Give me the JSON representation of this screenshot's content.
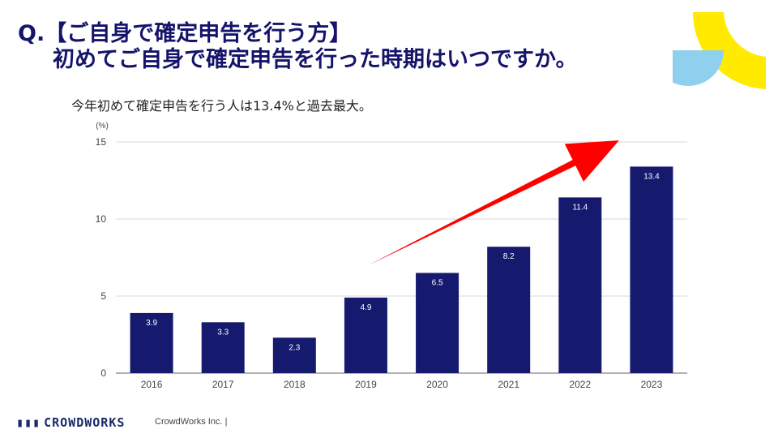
{
  "header": {
    "title_line1": "Q.【ご自身で確定申告を行う方】",
    "title_line2": "初めてご自身で確定申告を行った時期はいつですか。"
  },
  "subtitle": "今年初めて確定申告を行う人は13.4%と過去最大。",
  "footer": {
    "logo_mark": "▮▮▮",
    "logo_text": "CROWDWORKS",
    "company": "CrowdWorks Inc. |"
  },
  "colors": {
    "bar": "#161a6f",
    "arrow": "#ff0000",
    "deco_yellow": "#ffea00",
    "deco_blue": "#8fd0ef",
    "title": "#14146b"
  },
  "chart_data": {
    "type": "bar",
    "unit_label": "(%)",
    "categories": [
      "2016",
      "2017",
      "2018",
      "2019",
      "2020",
      "2021",
      "2022",
      "2023"
    ],
    "values": [
      3.9,
      3.3,
      2.3,
      4.9,
      6.5,
      8.2,
      11.4,
      13.4
    ],
    "data_labels": [
      "3.9",
      "3.3",
      "2.3",
      "4.9",
      "6.5",
      "8.2",
      "11.4",
      "13.4"
    ],
    "yticks": [
      0,
      5,
      10,
      15
    ],
    "ylim": [
      0,
      15
    ],
    "grid": true,
    "annotation": "red upward trend arrow from 2020 toward 2023"
  }
}
